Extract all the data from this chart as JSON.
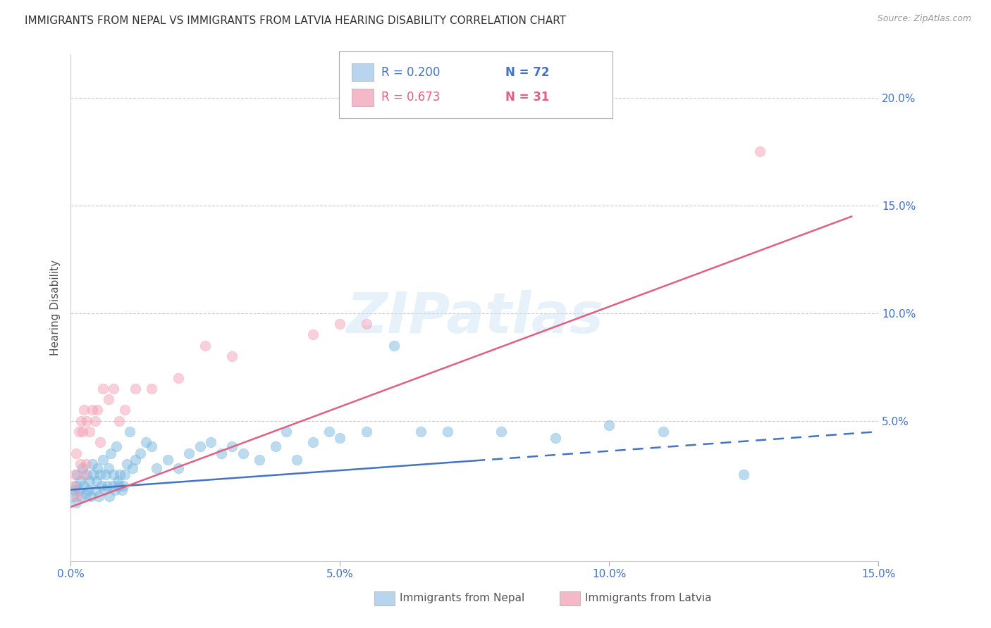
{
  "title": "IMMIGRANTS FROM NEPAL VS IMMIGRANTS FROM LATVIA HEARING DISABILITY CORRELATION CHART",
  "source": "Source: ZipAtlas.com",
  "ylabel": "Hearing Disability",
  "xlim": [
    0.0,
    15.0
  ],
  "ylim": [
    -1.5,
    22.0
  ],
  "nepal_R": 0.2,
  "nepal_N": 72,
  "nepal_color": "#7ab8e0",
  "nepal_line_color": "#4472c4",
  "latvia_R": 0.673,
  "latvia_N": 31,
  "latvia_color": "#f4a0b5",
  "latvia_line_color": "#e06080",
  "nepal_x": [
    0.05,
    0.08,
    0.1,
    0.1,
    0.12,
    0.15,
    0.18,
    0.2,
    0.22,
    0.25,
    0.28,
    0.3,
    0.32,
    0.35,
    0.38,
    0.4,
    0.42,
    0.45,
    0.48,
    0.5,
    0.52,
    0.55,
    0.58,
    0.6,
    0.62,
    0.65,
    0.68,
    0.7,
    0.72,
    0.75,
    0.78,
    0.8,
    0.82,
    0.85,
    0.88,
    0.9,
    0.92,
    0.95,
    0.98,
    1.0,
    1.05,
    1.1,
    1.15,
    1.2,
    1.3,
    1.4,
    1.5,
    1.6,
    1.8,
    2.0,
    2.2,
    2.4,
    2.6,
    2.8,
    3.0,
    3.2,
    3.5,
    3.8,
    4.0,
    4.2,
    4.5,
    4.8,
    5.0,
    5.5,
    6.0,
    6.5,
    7.0,
    8.0,
    9.0,
    10.0,
    11.0,
    12.5
  ],
  "nepal_y": [
    1.5,
    1.8,
    2.0,
    1.2,
    2.5,
    1.8,
    2.2,
    1.5,
    2.8,
    2.0,
    1.6,
    2.5,
    1.8,
    2.2,
    1.5,
    3.0,
    2.5,
    1.8,
    2.2,
    2.8,
    1.5,
    2.5,
    2.0,
    3.2,
    1.8,
    2.5,
    2.0,
    2.8,
    1.5,
    3.5,
    2.0,
    2.5,
    1.8,
    3.8,
    2.2,
    2.0,
    2.5,
    1.8,
    2.0,
    2.5,
    3.0,
    4.5,
    2.8,
    3.2,
    3.5,
    4.0,
    3.8,
    2.8,
    3.2,
    2.8,
    3.5,
    3.8,
    4.0,
    3.5,
    3.8,
    3.5,
    3.2,
    3.8,
    4.5,
    3.2,
    4.0,
    4.5,
    4.2,
    4.5,
    8.5,
    4.5,
    4.5,
    4.5,
    4.2,
    4.8,
    4.5,
    2.5
  ],
  "latvia_x": [
    0.05,
    0.08,
    0.1,
    0.12,
    0.15,
    0.18,
    0.2,
    0.22,
    0.25,
    0.28,
    0.3,
    0.35,
    0.4,
    0.45,
    0.5,
    0.55,
    0.6,
    0.7,
    0.8,
    0.9,
    1.0,
    1.2,
    1.5,
    2.0,
    2.5,
    3.0,
    4.5,
    5.0,
    5.5,
    12.8,
    0.25
  ],
  "latvia_y": [
    2.0,
    2.5,
    3.5,
    1.5,
    4.5,
    3.0,
    5.0,
    4.5,
    5.5,
    3.0,
    5.0,
    4.5,
    5.5,
    5.0,
    5.5,
    4.0,
    6.5,
    6.0,
    6.5,
    5.0,
    5.5,
    6.5,
    6.5,
    7.0,
    8.5,
    8.0,
    9.0,
    9.5,
    9.5,
    17.5,
    2.5
  ],
  "nepal_line_intercept": 1.8,
  "nepal_line_slope": 0.18,
  "nepal_solid_end": 7.5,
  "nepal_dash_end": 15.0,
  "latvia_line_intercept": 1.0,
  "latvia_line_slope": 0.93,
  "latvia_solid_end": 14.5,
  "watermark_text": "ZIPatlas",
  "bg_color": "#ffffff",
  "grid_color": "#cccccc",
  "tick_color": "#4472c4",
  "title_color": "#333333",
  "legend_box_color_nepal": "#b8d4ee",
  "legend_box_color_latvia": "#f4b8c8"
}
